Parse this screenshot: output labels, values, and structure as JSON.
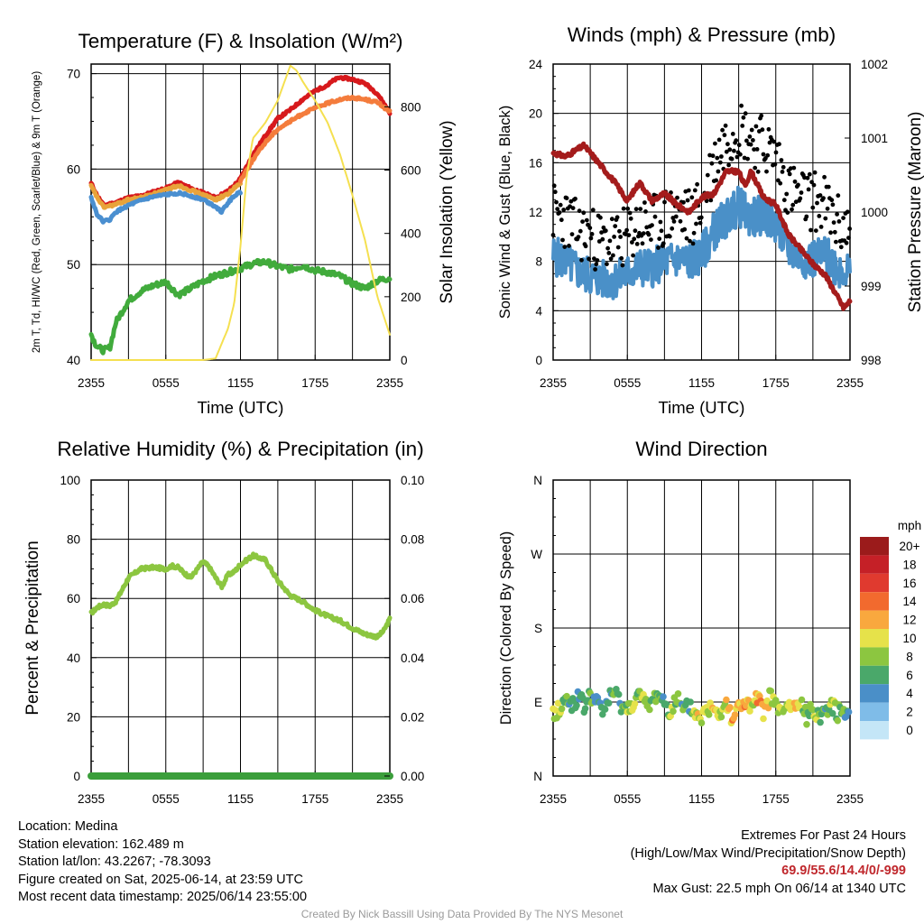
{
  "chart_data": [
    {
      "type": "line",
      "title": "Temperature (F) & Insolation (W/m²)",
      "xlabel": "Time (UTC)",
      "ylabel": "2m T, Td, HI/WC (Red, Green, Scarlet/Blue) & 9m T (Orange)",
      "y2label": "Solar Insolation (Yellow)",
      "x_ticks": [
        "2355",
        "0555",
        "1155",
        "1755",
        "2355"
      ],
      "y_ticks": [
        "40",
        "50",
        "60",
        "70"
      ],
      "y2_ticks": [
        "0",
        "200",
        "400",
        "600",
        "800"
      ],
      "ylim": [
        40,
        71
      ],
      "y2lim": [
        0,
        935
      ],
      "x_hours": [
        0,
        24
      ],
      "grid": true,
      "series": [
        {
          "name": "2m T",
          "color": "#d7191c",
          "axis": "left",
          "x": [
            0,
            0.5,
            1,
            2,
            3,
            4,
            5,
            6,
            7,
            8,
            9,
            10,
            11,
            11.5,
            12,
            13,
            14,
            15,
            16,
            17,
            18,
            19,
            19.5,
            20,
            21,
            22,
            23,
            24
          ],
          "y": [
            58.5,
            57.2,
            56.2,
            56.5,
            57.0,
            57.2,
            57.6,
            58.0,
            58.6,
            58.0,
            57.5,
            57.0,
            57.7,
            58.3,
            59.0,
            61.5,
            63.5,
            65.3,
            66.2,
            67.3,
            68.2,
            68.8,
            69.3,
            69.6,
            69.4,
            69.0,
            67.9,
            65.9
          ]
        },
        {
          "name": "HI/WC",
          "color": "#e8a33a",
          "axis": "left",
          "x": [
            0,
            0.5,
            1,
            2,
            3,
            4,
            5,
            6,
            7,
            8,
            9,
            10,
            11,
            11.5,
            12
          ],
          "y": [
            58.2,
            57.0,
            56.0,
            56.3,
            56.8,
            57.0,
            57.4,
            57.8,
            58.3,
            57.8,
            57.3,
            56.8,
            57.4,
            58.0,
            58.5
          ]
        },
        {
          "name": "9m T",
          "color": "#f47c3c",
          "axis": "left",
          "x": [
            12,
            13,
            14,
            15,
            16,
            17,
            18,
            19,
            20,
            21,
            22,
            23,
            24
          ],
          "y": [
            58.8,
            61.0,
            62.8,
            64.2,
            65.0,
            65.8,
            66.4,
            66.9,
            67.3,
            67.5,
            67.3,
            67.0,
            66.0
          ]
        },
        {
          "name": "Td",
          "color": "#41ab3c",
          "axis": "left",
          "x": [
            0,
            0.3,
            0.6,
            1,
            1.5,
            2,
            3,
            4,
            5,
            6,
            6.5,
            7,
            8,
            9,
            10,
            11,
            12,
            13,
            14,
            15,
            16,
            17,
            18,
            19,
            20,
            21,
            22,
            23,
            24
          ],
          "y": [
            42.7,
            41.8,
            41.3,
            41.0,
            41.3,
            44.0,
            46.2,
            47.2,
            47.8,
            48.2,
            47.5,
            46.8,
            47.5,
            48.3,
            48.8,
            49.2,
            49.6,
            50.1,
            50.3,
            49.8,
            49.5,
            49.9,
            49.4,
            49.2,
            48.8,
            48.0,
            47.5,
            48.3,
            48.6
          ]
        },
        {
          "name": "WC",
          "color": "#4a8fd0",
          "axis": "left",
          "x": [
            0,
            0.5,
            1,
            1.5,
            2,
            3,
            4,
            5,
            6,
            7,
            8,
            9,
            10,
            10.5,
            11,
            11.5,
            12
          ],
          "y": [
            57.0,
            55.2,
            54.5,
            54.7,
            55.5,
            56.2,
            56.7,
            57.1,
            57.3,
            57.5,
            57.2,
            56.8,
            56.1,
            55.5,
            56.5,
            57.2,
            57.6
          ]
        },
        {
          "name": "Solar Insolation",
          "color": "#f5e050",
          "axis": "right",
          "x": [
            0,
            1,
            2,
            5,
            8,
            9,
            10,
            11,
            11.5,
            12,
            12.5,
            13,
            14,
            15,
            16,
            16.5,
            17,
            18,
            19,
            20,
            21,
            22,
            23,
            24
          ],
          "y": [
            0,
            0,
            0,
            0,
            0,
            0,
            5,
            100,
            180,
            360,
            580,
            700,
            750,
            820,
            930,
            915,
            880,
            820,
            750,
            650,
            520,
            380,
            200,
            80
          ]
        }
      ]
    },
    {
      "type": "line",
      "title": "Winds (mph) & Pressure (mb)",
      "xlabel": "Time (UTC)",
      "ylabel": "Sonic Wind & Gust (Blue, Black)",
      "y2label": "Station Pressure (Maroon)",
      "x_ticks": [
        "2355",
        "0555",
        "1155",
        "1755",
        "2355"
      ],
      "y_ticks": [
        "0",
        "4",
        "8",
        "12",
        "16",
        "20",
        "24"
      ],
      "y2_ticks": [
        "998",
        "999",
        "1000",
        "1001",
        "1002"
      ],
      "ylim": [
        0,
        24
      ],
      "y2lim": [
        998,
        1002
      ],
      "x_hours": [
        0,
        24
      ],
      "grid": true,
      "series": [
        {
          "name": "Sonic Wind",
          "color": "#4a90c8",
          "axis": "left",
          "x": [
            0,
            1,
            2,
            3,
            4,
            5,
            6,
            7,
            8,
            9,
            10,
            11,
            12,
            13,
            14,
            15,
            16,
            17,
            18,
            19,
            20,
            21,
            22,
            23,
            24
          ],
          "y": [
            8.5,
            8.0,
            7.2,
            6.8,
            6.5,
            6.5,
            7.0,
            7.5,
            7.5,
            8.0,
            8.2,
            8.0,
            8.5,
            10.5,
            11.5,
            12.5,
            11.5,
            11.8,
            11.0,
            9.0,
            8.3,
            8.2,
            8.5,
            7.5,
            7.2
          ]
        },
        {
          "name": "Gust",
          "color": "#000000",
          "axis": "left",
          "x": [
            0,
            1,
            2,
            3,
            4,
            5,
            6,
            7,
            8,
            9,
            10,
            11,
            12,
            13,
            14,
            15,
            16,
            17,
            18,
            19,
            20,
            21,
            22,
            23,
            24
          ],
          "y": [
            12.0,
            11.5,
            10.5,
            10.0,
            9.5,
            9.5,
            10.0,
            11.0,
            10.8,
            11.5,
            12.0,
            11.5,
            12.5,
            16.0,
            18.0,
            19.0,
            18.0,
            17.5,
            16.5,
            14.0,
            13.0,
            13.0,
            12.5,
            11.0,
            10.5
          ]
        },
        {
          "name": "Station Pressure",
          "color": "#a41c1c",
          "axis": "right",
          "x": [
            0,
            1,
            2,
            2.5,
            3,
            4,
            5,
            6,
            7,
            8,
            9,
            10,
            11,
            12,
            13,
            14,
            15,
            15.5,
            16,
            17,
            18,
            19,
            20,
            21,
            22,
            23,
            23.5,
            24
          ],
          "y": [
            1000.8,
            1000.75,
            1000.85,
            1000.9,
            1000.8,
            1000.6,
            1000.4,
            1000.15,
            1000.4,
            1000.15,
            1000.25,
            1000.1,
            1000.0,
            1000.2,
            1000.25,
            1000.55,
            1000.55,
            1000.35,
            1000.55,
            1000.2,
            1000.1,
            999.7,
            999.5,
            999.3,
            999.15,
            998.85,
            998.7,
            998.8
          ]
        }
      ]
    },
    {
      "type": "line",
      "title": "Relative Humidity (%) & Precipitation (in)",
      "xlabel": "",
      "ylabel": "Percent & Precipitation",
      "x_ticks": [
        "2355",
        "0555",
        "1155",
        "1755",
        "2355"
      ],
      "y_ticks": [
        "0",
        "20",
        "40",
        "60",
        "80",
        "100"
      ],
      "y2_ticks": [
        "0.00",
        "0.02",
        "0.04",
        "0.06",
        "0.08",
        "0.10"
      ],
      "ylim": [
        0,
        100
      ],
      "y2lim": [
        0,
        0.1
      ],
      "x_hours": [
        0,
        24
      ],
      "grid": true,
      "series": [
        {
          "name": "Relative Humidity",
          "color": "#8cc640",
          "axis": "left",
          "x": [
            0,
            0.5,
            1,
            1.5,
            2,
            2.5,
            3,
            4,
            5,
            6,
            6.5,
            7,
            7.5,
            8,
            9,
            9.5,
            10,
            10.5,
            11,
            11.5,
            12,
            13,
            14,
            15,
            16,
            17,
            18,
            19,
            20,
            21,
            22,
            23,
            23.5,
            24
          ],
          "y": [
            55,
            57,
            58,
            57.5,
            59,
            63,
            67,
            70,
            70.5,
            70,
            71,
            70.5,
            68.5,
            67,
            72.5,
            70.5,
            67,
            64,
            68,
            69,
            71.5,
            74.5,
            73,
            66,
            61,
            59,
            56,
            54,
            52.5,
            50,
            48,
            47,
            49,
            53
          ]
        },
        {
          "name": "Precipitation",
          "color": "#3b9e3b",
          "axis": "right",
          "x": [
            0,
            24
          ],
          "y": [
            0,
            0
          ]
        }
      ]
    },
    {
      "type": "scatter",
      "title": "Wind Direction",
      "xlabel": "",
      "ylabel": "Direction (Colored By Speed)",
      "x_ticks": [
        "2355",
        "0555",
        "1155",
        "1755",
        "2355"
      ],
      "y_ticks": [
        "N",
        "E",
        "S",
        "W",
        "N"
      ],
      "ylim": [
        0,
        360
      ],
      "x_hours": [
        0,
        24
      ],
      "grid": true,
      "legend_title": "mph",
      "legend_labels": [
        "20+",
        "18",
        "16",
        "14",
        "12",
        "10",
        "8",
        "6",
        "4",
        "2",
        "0"
      ],
      "legend_colors": [
        "#9b1b1b",
        "#c52027",
        "#e03a2f",
        "#f26a2e",
        "#f9a83e",
        "#e6e24a",
        "#8cc640",
        "#4aa86a",
        "#4a8fc8",
        "#7fbce8",
        "#c4e6f7"
      ],
      "series": [
        {
          "name": "Direction",
          "axis": "left",
          "x": [
            0,
            0.5,
            1,
            1.5,
            2,
            2.5,
            3,
            3.5,
            4,
            4.5,
            5,
            5.5,
            6,
            6.5,
            7,
            7.5,
            8,
            8.5,
            9,
            9.5,
            10,
            10.5,
            11,
            11.5,
            12,
            12.5,
            13,
            13.5,
            14,
            14.5,
            15,
            15.5,
            16,
            16.5,
            17,
            17.5,
            18,
            18.5,
            19,
            19.5,
            20,
            20.5,
            21,
            21.5,
            22,
            22.5,
            23,
            23.5,
            24
          ],
          "y": [
            75,
            82,
            92,
            88,
            95,
            85,
            98,
            90,
            78,
            95,
            100,
            88,
            80,
            92,
            98,
            85,
            90,
            102,
            88,
            80,
            95,
            78,
            85,
            75,
            72,
            80,
            88,
            76,
            92,
            70,
            84,
            90,
            80,
            94,
            78,
            96,
            88,
            74,
            86,
            82,
            90,
            70,
            85,
            72,
            80,
            88,
            76,
            82,
            78
          ],
          "speeds": [
            9,
            10,
            8,
            7,
            6,
            7,
            9,
            5,
            6,
            7,
            8,
            6,
            9,
            11,
            8,
            10,
            7,
            8,
            6,
            9,
            8,
            7,
            6,
            10,
            11,
            9,
            12,
            10,
            11,
            13,
            12,
            14,
            10,
            13,
            12,
            11,
            8,
            9,
            10,
            12,
            9,
            7,
            10,
            8,
            6,
            9,
            8,
            7,
            6
          ]
        }
      ]
    }
  ],
  "footer": {
    "location": "Location: Medina",
    "elevation": "Station elevation: 162.489 m",
    "latlon": "Station lat/lon: 43.2267; -78.3093",
    "created": "Figure created on Sat, 2025-06-14, at 23:59 UTC",
    "recent": "Most recent data timestamp: 2025/06/14 23:55:00",
    "extremes_title": "Extremes For Past 24 Hours",
    "extremes_desc": "(High/Low/Max Wind/Precipitation/Snow Depth)",
    "extremes_values": "69.9/55.6/14.4/0/-999",
    "max_gust": "Max Gust: 22.5 mph On 06/14 at 1340 UTC",
    "credit": "Created By Nick Bassill Using Data Provided By The NYS Mesonet"
  }
}
